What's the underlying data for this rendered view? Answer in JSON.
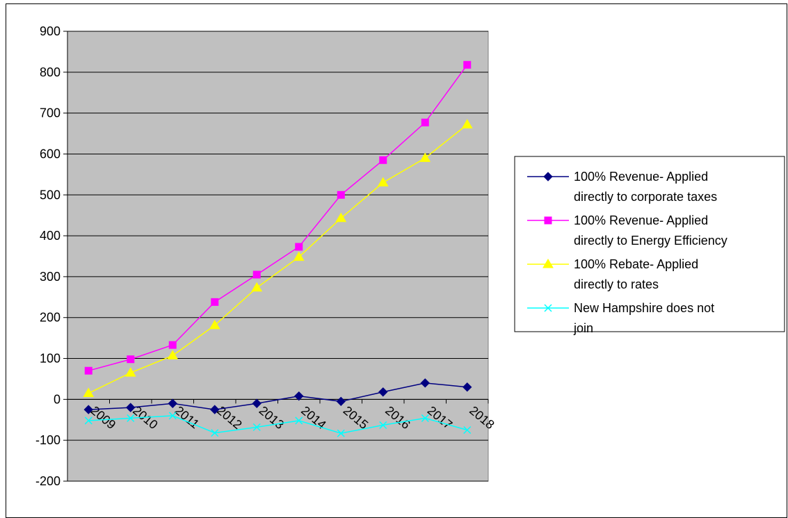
{
  "chart_data": {
    "type": "line",
    "title": "",
    "xlabel": "",
    "ylabel": "",
    "categories": [
      "2009",
      "2010",
      "2011",
      "2012",
      "2013",
      "2014",
      "2015",
      "2016",
      "2017",
      "2018"
    ],
    "ylim": [
      -200,
      900
    ],
    "yticks": [
      "900",
      "800",
      "700",
      "600",
      "500",
      "400",
      "300",
      "200",
      "100",
      "0",
      "-100",
      "-200"
    ],
    "grid": true,
    "plot_background": "#C0C0C0",
    "legend_position": "right",
    "series": [
      {
        "name_lines": [
          "100% Revenue- Applied",
          "directly to corporate taxes"
        ],
        "color": "#000080",
        "marker": "diamond",
        "values": [
          -25,
          -20,
          -10,
          -25,
          -10,
          8,
          -5,
          18,
          40,
          30
        ]
      },
      {
        "name_lines": [
          "100% Revenue- Applied",
          "directly to Energy Efficiency"
        ],
        "color": "#FF00FF",
        "marker": "square",
        "values": [
          70,
          98,
          133,
          238,
          305,
          373,
          500,
          585,
          677,
          818
        ]
      },
      {
        "name_lines": [
          "100% Rebate- Applied",
          "directly to rates"
        ],
        "color": "#FFFF00",
        "marker": "triangle",
        "values": [
          15,
          65,
          107,
          181,
          273,
          348,
          443,
          530,
          590,
          672
        ]
      },
      {
        "name_lines": [
          "New Hampshire does not",
          "join"
        ],
        "color": "#00FFFF",
        "marker": "x",
        "values": [
          -52,
          -46,
          -40,
          -82,
          -68,
          -52,
          -83,
          -63,
          -46,
          -75
        ]
      }
    ]
  }
}
